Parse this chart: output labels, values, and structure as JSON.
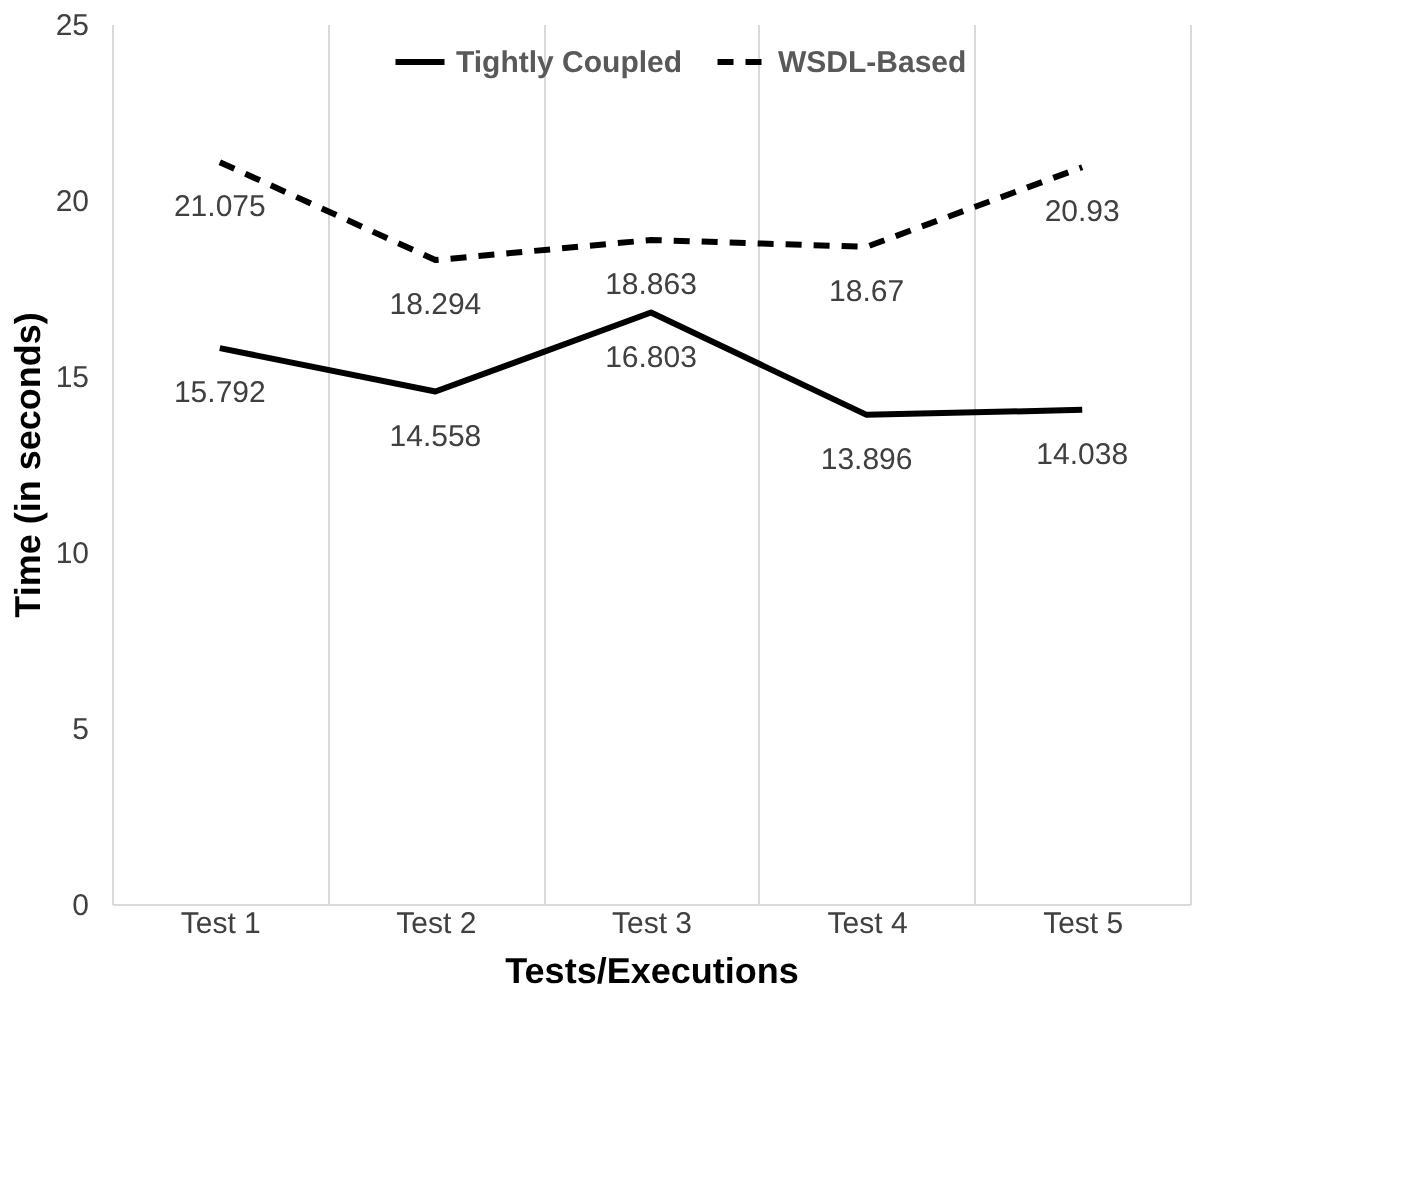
{
  "chart_data": {
    "type": "line",
    "xlabel": "Tests/Executions",
    "ylabel": "Time (in seconds)",
    "categories": [
      "Test 1",
      "Test 2",
      "Test 3",
      "Test 4",
      "Test 5"
    ],
    "series": [
      {
        "name": "Tightly Coupled",
        "color": "#000000",
        "line_style": "solid",
        "values": [
          15.792,
          14.558,
          16.803,
          13.896,
          14.038
        ]
      },
      {
        "name": "WSDL-Based",
        "color": "#000000",
        "line_style": "dashed",
        "values": [
          21.075,
          18.294,
          18.863,
          18.67,
          20.93
        ]
      }
    ],
    "ylim": [
      0,
      25
    ],
    "yticks": [
      0,
      5,
      10,
      15,
      20,
      25
    ],
    "grid": "x",
    "legend": "top",
    "marker": "none",
    "data_labels": true
  }
}
